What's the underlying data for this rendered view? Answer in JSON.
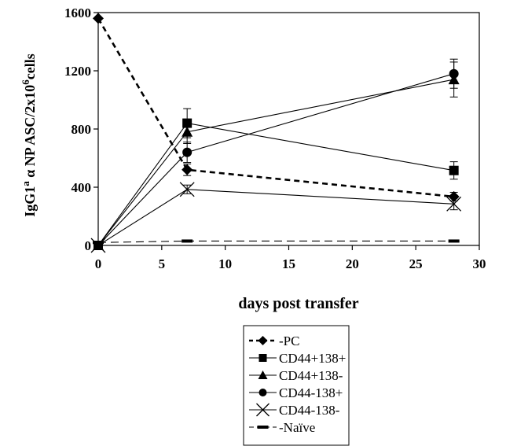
{
  "chart_data": {
    "type": "line",
    "xlabel": "days post transfer",
    "ylabel": {
      "prefix": "IgG1",
      "sup1": "a",
      "middle": " α NP ASC/2x10",
      "sup2": "6",
      "suffix": "cells"
    },
    "xlim": [
      0,
      30
    ],
    "ylim": [
      0,
      1600
    ],
    "xticks": [
      "0",
      "5",
      "10",
      "15",
      "20",
      "25",
      "30"
    ],
    "yticks": [
      "0",
      "400",
      "800",
      "1200",
      "1600"
    ],
    "grid": false,
    "legend_position": "bottom",
    "series": [
      {
        "name": "PC",
        "marker": "diamond",
        "line": "dashed-heavy",
        "x": [
          0,
          7,
          28
        ],
        "y": [
          1560,
          520,
          335
        ],
        "err": [
          0,
          40,
          30
        ]
      },
      {
        "name": "CD44+138+",
        "marker": "square",
        "line": "solid",
        "x": [
          0,
          7,
          28
        ],
        "y": [
          0,
          840,
          515
        ],
        "err": [
          0,
          100,
          60
        ]
      },
      {
        "name": "CD44+138-",
        "marker": "triangle",
        "line": "solid",
        "x": [
          0,
          7,
          28
        ],
        "y": [
          0,
          780,
          1140
        ],
        "err": [
          0,
          80,
          120
        ]
      },
      {
        "name": "CD44-138+",
        "marker": "circle",
        "line": "solid",
        "x": [
          0,
          7,
          28
        ],
        "y": [
          0,
          640,
          1180
        ],
        "err": [
          0,
          70,
          100
        ]
      },
      {
        "name": "CD44-138-",
        "marker": "x",
        "line": "solid",
        "x": [
          0,
          7,
          28
        ],
        "y": [
          0,
          385,
          285
        ],
        "err": [
          0,
          30,
          40
        ]
      },
      {
        "name": "Naïve",
        "marker": "dash",
        "line": "dashed-light",
        "x": [
          0,
          7,
          28
        ],
        "y": [
          20,
          30,
          30
        ],
        "err": [
          0,
          0,
          0
        ]
      }
    ]
  }
}
